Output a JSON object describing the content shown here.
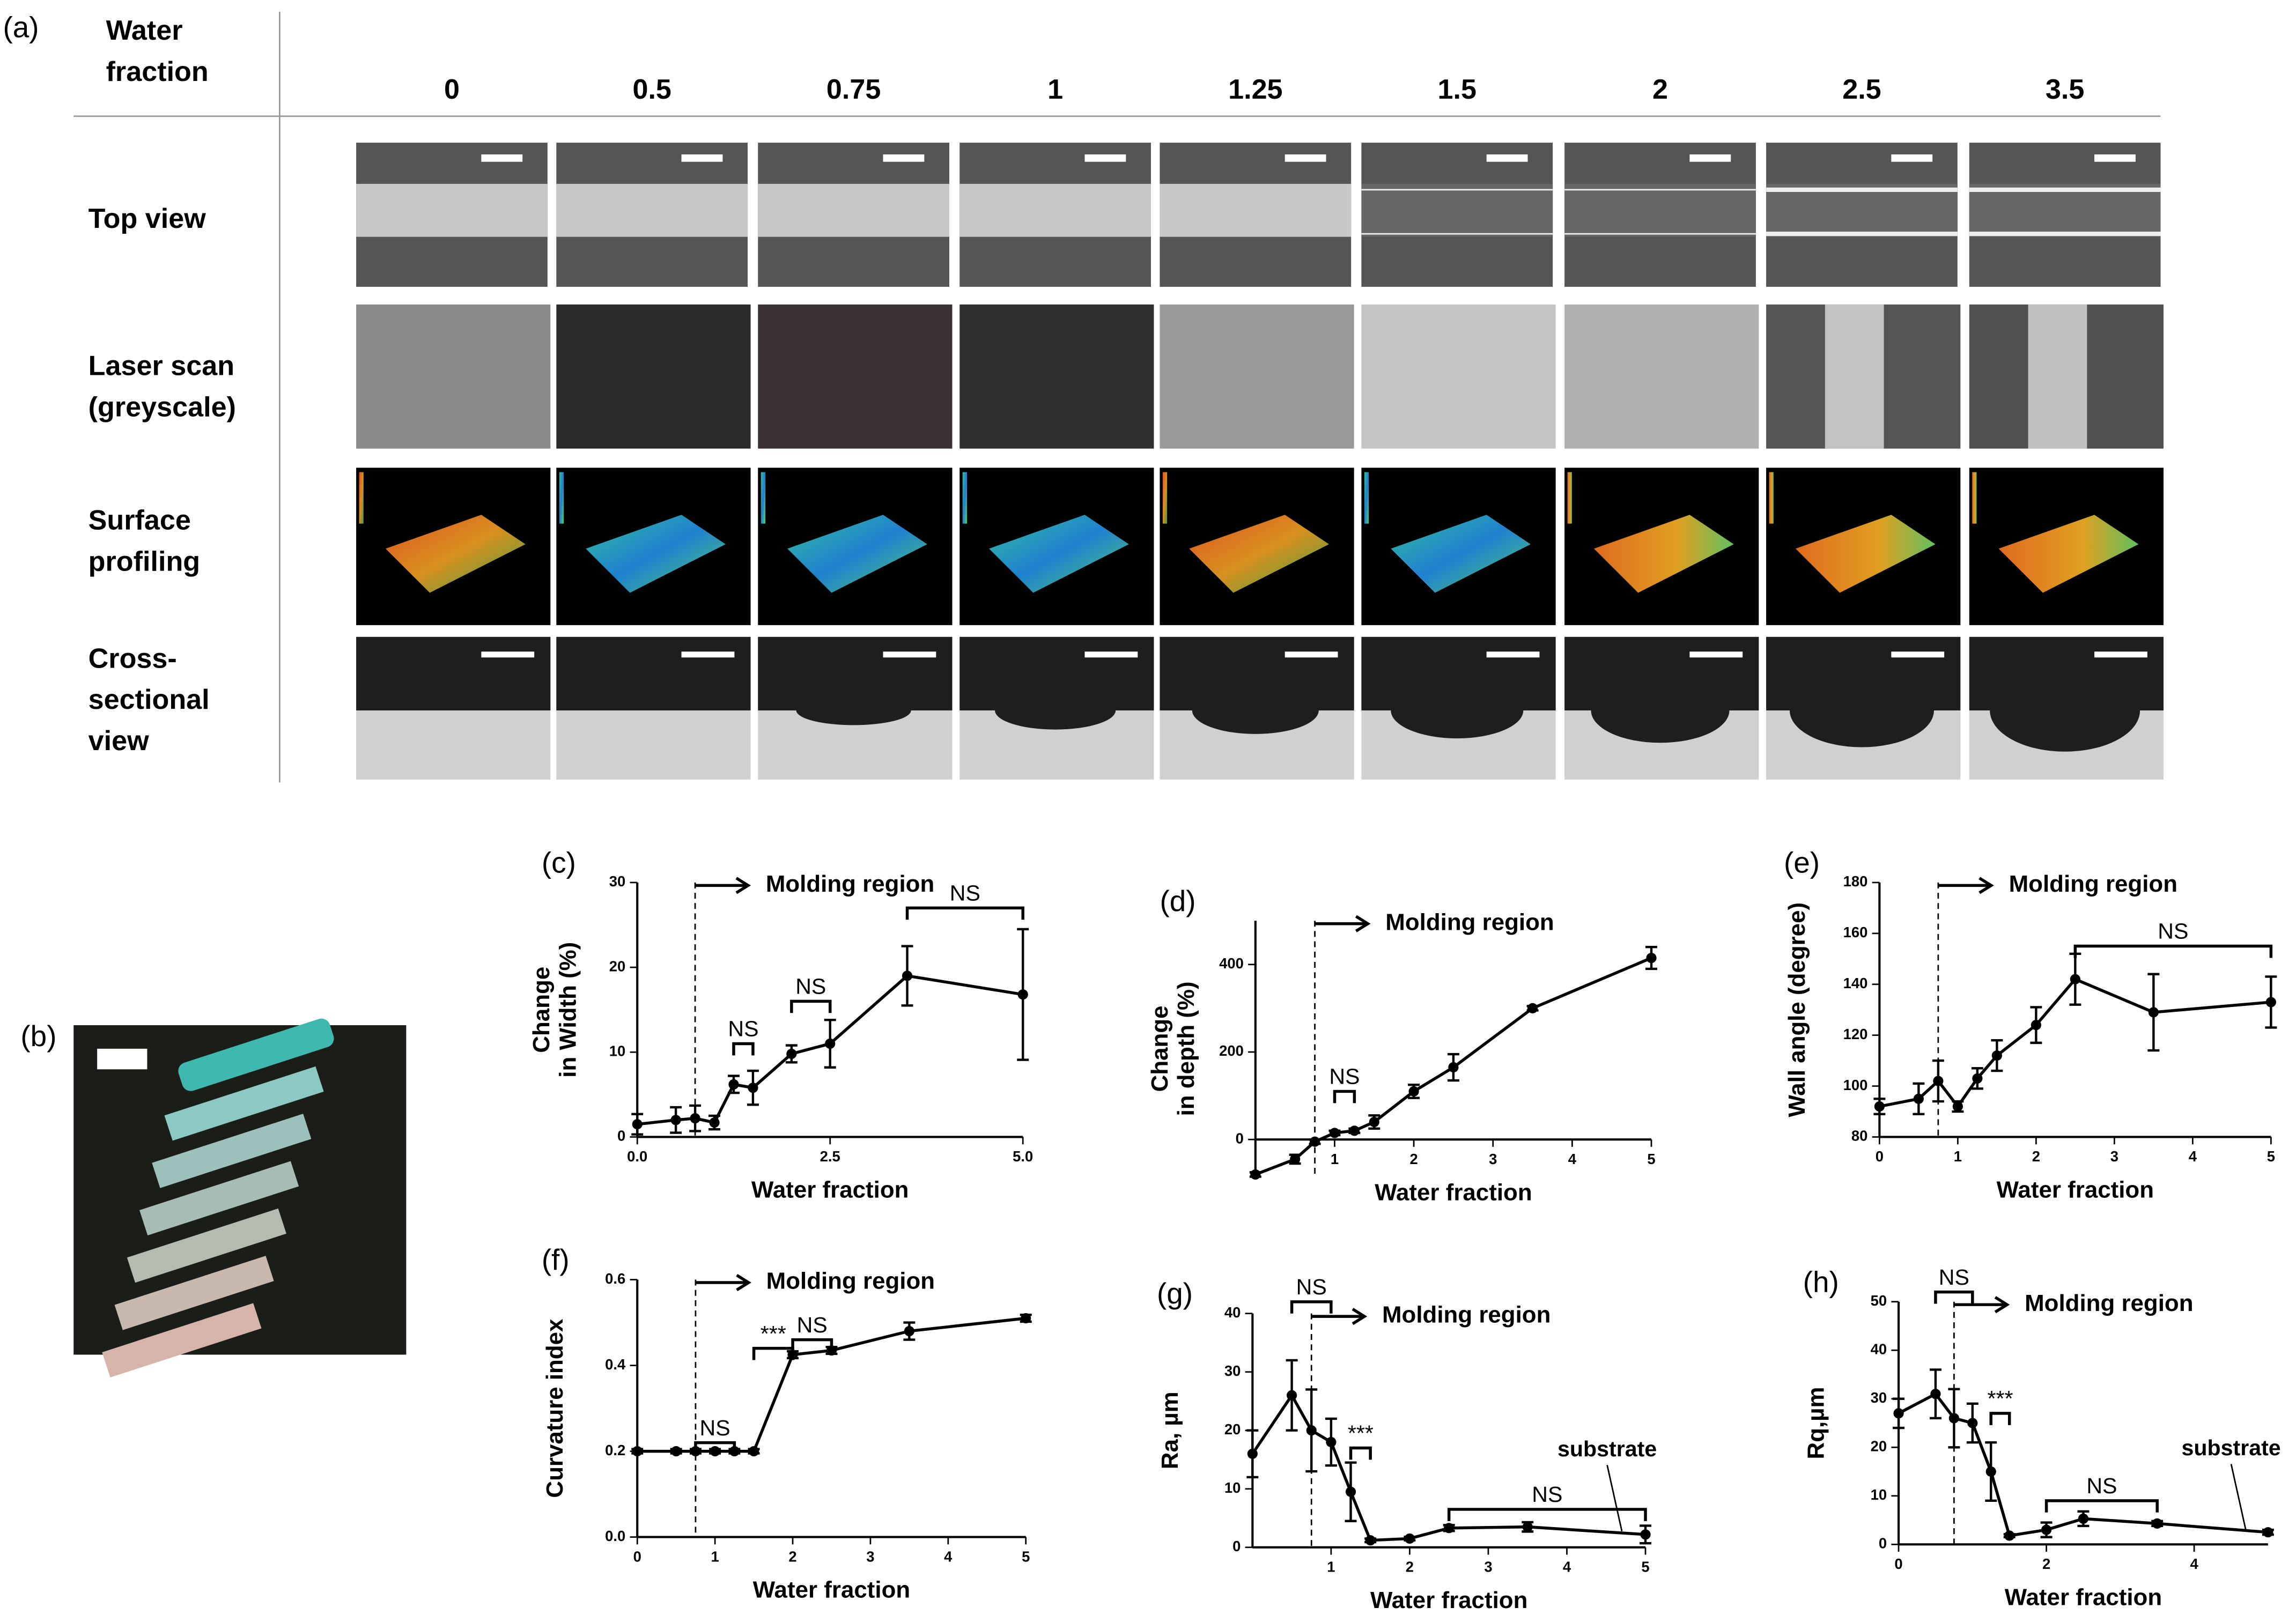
{
  "panel_a": {
    "label": "(a)",
    "corner_header": [
      "Water",
      "fraction"
    ],
    "columns": [
      "0",
      "0.5",
      "0.75",
      "1",
      "1.25",
      "1.5",
      "2",
      "2.5",
      "3.5"
    ],
    "rows": [
      [
        "Top view"
      ],
      [
        "Laser scan",
        "(greyscale)"
      ],
      [
        "Surface",
        "profiling"
      ],
      [
        "Cross-",
        "sectional",
        "view"
      ]
    ]
  },
  "panel_b": {
    "label": "(b)"
  },
  "chart_data": [
    {
      "type": "line",
      "panel": "(c)",
      "color": "#000000",
      "x_label": "Water fraction",
      "y_label": [
        "Change",
        "in Width (%)"
      ],
      "x": [
        0,
        0.5,
        0.75,
        1,
        1.25,
        1.5,
        2,
        2.5,
        3.5,
        5
      ],
      "values": [
        1.5,
        2,
        2.2,
        1.7,
        6.2,
        5.8,
        9.8,
        11,
        19,
        16.8
      ],
      "errors": [
        1.2,
        1.5,
        1.5,
        0.8,
        1,
        2,
        1,
        2.8,
        3.5,
        7.7
      ],
      "xlim": [
        0,
        5
      ],
      "xticks": [
        {
          "value": 0,
          "label": "0.0"
        },
        {
          "value": 2.5,
          "label": "2.5"
        },
        {
          "value": 5,
          "label": "5.0"
        }
      ],
      "ylim": [
        0,
        30
      ],
      "yticks": [
        0,
        10,
        20,
        30
      ],
      "vline": 0.75,
      "region_label": "Molding region",
      "brackets": [
        {
          "label": "NS",
          "x": [
            1.25,
            1.5
          ],
          "y": 11
        },
        {
          "label": "NS",
          "x": [
            2,
            2.5
          ],
          "y": 16
        },
        {
          "label": "NS",
          "x": [
            3.5,
            5
          ],
          "y": 27
        }
      ]
    },
    {
      "type": "line",
      "panel": "(d)",
      "color": "#000000",
      "x_label": "Water fraction",
      "y_label": [
        "Change",
        "in depth (%)"
      ],
      "x": [
        0,
        0.5,
        0.75,
        1,
        1.25,
        1.5,
        2,
        2.5,
        3.5,
        5
      ],
      "values": [
        -80,
        -45,
        -5,
        15,
        20,
        40,
        110,
        165,
        300,
        415
      ],
      "errors": [
        5,
        10,
        5,
        5,
        5,
        15,
        15,
        30,
        5,
        25
      ],
      "xlim": [
        0,
        5
      ],
      "xticks": [
        1,
        2,
        3,
        4,
        5
      ],
      "ylim": [
        -85,
        500
      ],
      "yticks": [
        0,
        200,
        400
      ],
      "vline": 0.75,
      "region_label": "Molding region",
      "brackets": [
        {
          "label": "NS",
          "x": [
            1,
            1.25
          ],
          "y": 110
        }
      ]
    },
    {
      "type": "line",
      "panel": "(e)",
      "color": "#000000",
      "x_label": "Water fraction",
      "y_label": [
        "Wall angle (degree)"
      ],
      "x": [
        0,
        0.5,
        0.75,
        1,
        1.25,
        1.5,
        2,
        2.5,
        3.5,
        5
      ],
      "values": [
        92,
        95,
        102,
        92,
        103,
        112,
        124,
        142,
        129,
        133
      ],
      "errors": [
        3,
        6,
        8,
        2,
        4,
        6,
        7,
        10,
        15,
        10
      ],
      "xlim": [
        0,
        5
      ],
      "xticks": [
        0,
        1,
        2,
        3,
        4,
        5
      ],
      "ylim": [
        80,
        180
      ],
      "yticks": [
        80,
        100,
        120,
        140,
        160,
        180
      ],
      "vline": 0.75,
      "region_label": "Molding region",
      "brackets": [
        {
          "label": "NS",
          "x": [
            2.5,
            5
          ],
          "y": 155
        }
      ]
    },
    {
      "type": "line",
      "panel": "(f)",
      "color": "#000000",
      "x_label": "Water fraction",
      "y_label": [
        "Curvature index"
      ],
      "x": [
        0,
        0.5,
        0.75,
        1,
        1.25,
        1.5,
        2,
        2.5,
        3.5,
        5
      ],
      "values": [
        0.2,
        0.2,
        0.2,
        0.2,
        0.2,
        0.2,
        0.425,
        0.435,
        0.48,
        0.51
      ],
      "errors": [
        0.005,
        0.005,
        0.005,
        0.005,
        0.005,
        0.005,
        0.008,
        0.008,
        0.02,
        0.008
      ],
      "xlim": [
        0,
        5
      ],
      "xticks": [
        0,
        1,
        2,
        3,
        4,
        5
      ],
      "ylim": [
        0,
        0.6
      ],
      "yticks": [
        {
          "value": 0,
          "label": "0.0"
        },
        0.2,
        0.4,
        0.6
      ],
      "vline": 0.75,
      "region_label": "Molding region",
      "brackets": [
        {
          "label": "NS",
          "x": [
            0.75,
            1.25
          ],
          "y": 0.22
        },
        {
          "label": "***",
          "x": [
            1.5,
            2
          ],
          "y": 0.44
        },
        {
          "label": "NS",
          "x": [
            2,
            2.5
          ],
          "y": 0.46
        }
      ]
    },
    {
      "type": "line",
      "panel": "(g)",
      "color": "#000000",
      "x_label": "Water fraction",
      "y_label": [
        "Ra, µm"
      ],
      "x": [
        0,
        0.5,
        0.75,
        1,
        1.25,
        1.5,
        2,
        2.5,
        3.5,
        5
      ],
      "values": [
        16,
        26,
        20,
        18,
        9.5,
        1.2,
        1.5,
        3.3,
        3.5,
        2.2
      ],
      "errors": [
        4,
        6,
        7,
        4,
        5,
        0.3,
        0.3,
        0.5,
        0.8,
        1.5
      ],
      "xlim": [
        0,
        5
      ],
      "xticks": [
        1,
        2,
        3,
        4,
        5
      ],
      "ylim": [
        0,
        40
      ],
      "yticks": [
        0,
        10,
        20,
        30,
        40
      ],
      "vline": 0.75,
      "region_label": "Molding region",
      "brackets": [
        {
          "label": "NS",
          "x": [
            0.5,
            1
          ],
          "y": 42
        },
        {
          "label": "***",
          "x": [
            1.25,
            1.5
          ],
          "y": 17
        },
        {
          "label": "NS",
          "x": [
            2.5,
            5
          ],
          "y": 6.5
        }
      ],
      "annotation": {
        "text": "substrate",
        "x": 4.7,
        "y": 2
      }
    },
    {
      "type": "line",
      "panel": "(h)",
      "color": "#000000",
      "x_label": "Water fraction",
      "y_label": [
        "Rq,µm"
      ],
      "x": [
        0,
        0.5,
        0.75,
        1,
        1.25,
        1.5,
        2,
        2.5,
        3.5,
        5
      ],
      "values": [
        27,
        31,
        26,
        25,
        15,
        1.8,
        3,
        5.3,
        4.3,
        2.5
      ],
      "errors": [
        3,
        5,
        6,
        4,
        6,
        0.3,
        1.5,
        1.5,
        0.5,
        0.5
      ],
      "xlim": [
        0,
        5
      ],
      "xticks": [
        0,
        2,
        4
      ],
      "ylim": [
        0,
        50
      ],
      "yticks": [
        0,
        10,
        20,
        30,
        40,
        50
      ],
      "vline": 0.75,
      "region_label": "Molding region",
      "brackets": [
        {
          "label": "NS",
          "x": [
            0.5,
            1
          ],
          "y": 52
        },
        {
          "label": "***",
          "x": [
            1.25,
            1.5
          ],
          "y": 27
        },
        {
          "label": "NS",
          "x": [
            2,
            3.5
          ],
          "y": 9
        }
      ],
      "annotation": {
        "text": "substrate",
        "x": 4.7,
        "y": 2
      }
    }
  ]
}
